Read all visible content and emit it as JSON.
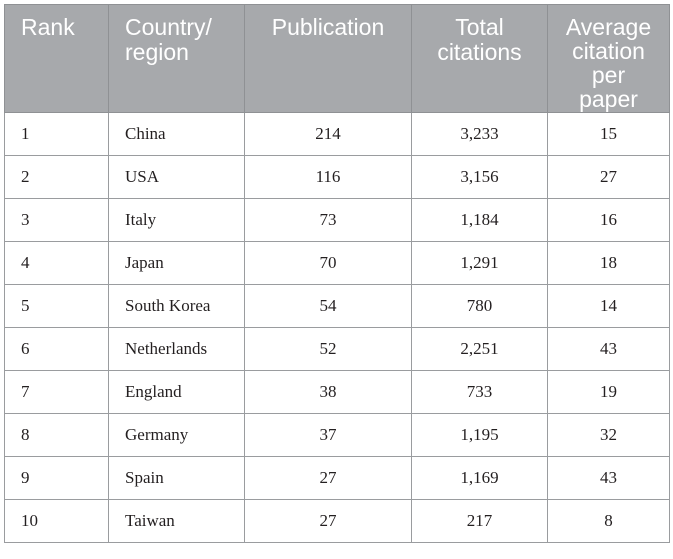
{
  "table": {
    "headers": {
      "rank": "Rank",
      "country": "Country/\nregion",
      "publication": "Publication",
      "total_citations": "Total\ncitations",
      "average": "Average\ncitation\nper\npaper"
    },
    "rows": [
      {
        "rank": "1",
        "country": "China",
        "publication": "214",
        "total_citations": "3,233",
        "average": "15"
      },
      {
        "rank": "2",
        "country": "USA",
        "publication": "116",
        "total_citations": "3,156",
        "average": "27"
      },
      {
        "rank": "3",
        "country": "Italy",
        "publication": "73",
        "total_citations": "1,184",
        "average": "16"
      },
      {
        "rank": "4",
        "country": "Japan",
        "publication": "70",
        "total_citations": "1,291",
        "average": "18"
      },
      {
        "rank": "5",
        "country": "South Korea",
        "publication": "54",
        "total_citations": "780",
        "average": "14"
      },
      {
        "rank": "6",
        "country": "Netherlands",
        "publication": "52",
        "total_citations": "2,251",
        "average": "43"
      },
      {
        "rank": "7",
        "country": "England",
        "publication": "38",
        "total_citations": "733",
        "average": "19"
      },
      {
        "rank": "8",
        "country": "Germany",
        "publication": "37",
        "total_citations": "1,195",
        "average": "32"
      },
      {
        "rank": "9",
        "country": "Spain",
        "publication": "27",
        "total_citations": "1,169",
        "average": "43"
      },
      {
        "rank": "10",
        "country": "Taiwan",
        "publication": "27",
        "total_citations": "217",
        "average": "8"
      }
    ]
  },
  "colors": {
    "header_bg": "#a7a9ac",
    "header_text": "#ffffff",
    "body_text": "#231f20",
    "grid": "#9a9c9f"
  }
}
